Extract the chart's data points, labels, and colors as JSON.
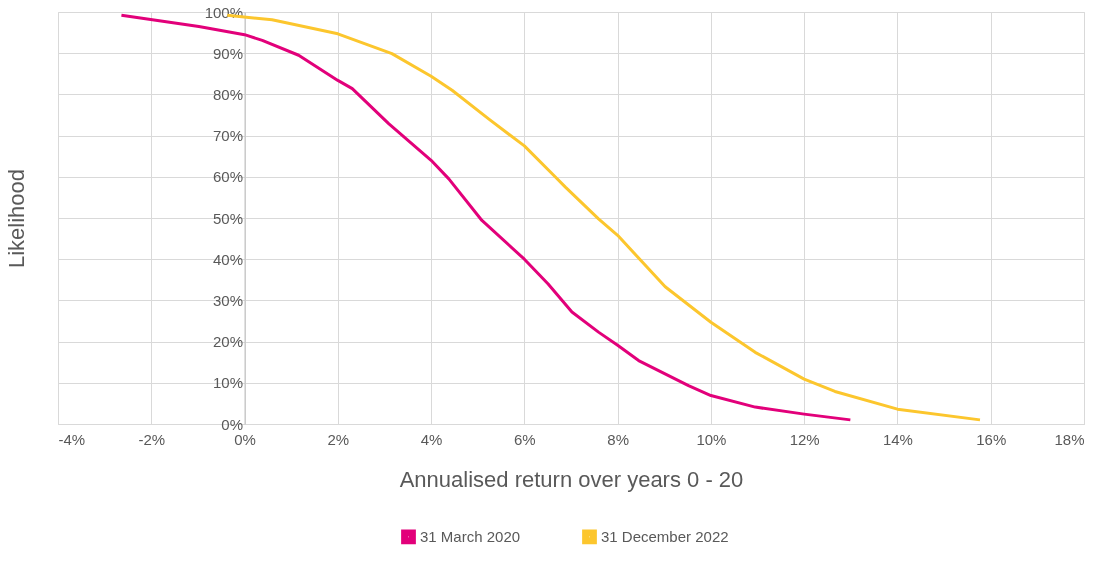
{
  "chart_data": {
    "type": "line",
    "xlabel": "Annualised return over years 0 - 20",
    "ylabel": "Likelihood",
    "xlim": [
      -4,
      18
    ],
    "ylim": [
      0,
      100
    ],
    "xticks": [
      {
        "value": -4,
        "label": "-4%"
      },
      {
        "value": -2,
        "label": "-2%"
      },
      {
        "value": 0,
        "label": "0%"
      },
      {
        "value": 2,
        "label": "2%"
      },
      {
        "value": 4,
        "label": "4%"
      },
      {
        "value": 6,
        "label": "6%"
      },
      {
        "value": 8,
        "label": "8%"
      },
      {
        "value": 10,
        "label": "10%"
      },
      {
        "value": 12,
        "label": "12%"
      },
      {
        "value": 14,
        "label": "14%"
      },
      {
        "value": 16,
        "label": "16%"
      },
      {
        "value": 18,
        "label": "18%"
      }
    ],
    "yticks": [
      {
        "value": 0,
        "label": "0%"
      },
      {
        "value": 10,
        "label": "10%"
      },
      {
        "value": 20,
        "label": "20%"
      },
      {
        "value": 30,
        "label": "30%"
      },
      {
        "value": 40,
        "label": "40%"
      },
      {
        "value": 50,
        "label": "50%"
      },
      {
        "value": 60,
        "label": "60%"
      },
      {
        "value": 70,
        "label": "70%"
      },
      {
        "value": 80,
        "label": "80%"
      },
      {
        "value": 90,
        "label": "90%"
      },
      {
        "value": 100,
        "label": "100%"
      }
    ],
    "grid": true,
    "legend": "bottom",
    "marker": "none",
    "line_style": "solid",
    "series": [
      {
        "name": "31 March 2020",
        "color": "#e2007a",
        "x": [
          -2.64,
          -0.98,
          0,
          0.38,
          1.16,
          2.0,
          2.31,
          3.09,
          4.0,
          4.38,
          5.09,
          6.0,
          6.51,
          7.02,
          7.59,
          8.0,
          8.45,
          9.52,
          10.0,
          10.95,
          12.0,
          12.99
        ],
        "values": [
          99.2,
          96.5,
          94.5,
          93.1,
          89.5,
          83.4,
          81.4,
          72.9,
          64.0,
          59.5,
          49.4,
          40.0,
          34.0,
          27.2,
          22.3,
          19.1,
          15.4,
          9.3,
          6.9,
          4.1,
          2.4,
          1.0
        ]
      },
      {
        "name": "31 December 2022",
        "color": "#fcc62d",
        "x": [
          -0.37,
          0.59,
          2.0,
          3.16,
          4.0,
          4.45,
          5.24,
          5.66,
          6.0,
          6.66,
          6.88,
          7.59,
          8.0,
          9.02,
          10.0,
          10.95,
          12.0,
          12.66,
          14.0,
          15.77
        ],
        "values": [
          99.2,
          98.1,
          94.7,
          89.9,
          84.4,
          81.0,
          74.0,
          70.4,
          67.5,
          60.0,
          57.5,
          49.8,
          45.8,
          33.3,
          24.7,
          17.4,
          10.9,
          7.9,
          3.6,
          1.0
        ]
      }
    ]
  }
}
